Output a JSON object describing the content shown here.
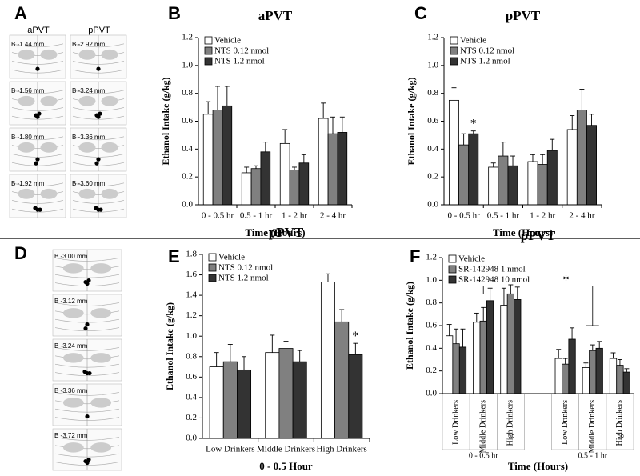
{
  "panels": [
    "A",
    "B",
    "C",
    "D",
    "E",
    "F"
  ],
  "atlas": {
    "a": {
      "columns": [
        "aPVT",
        "pPVT"
      ],
      "levels": [
        [
          "B -1.44 mm",
          "B -1.56 mm",
          "B -1.80 mm",
          "B -1.92 mm"
        ],
        [
          "B -2.92 mm",
          "B -3.24 mm",
          "B -3.36 mm",
          "B -3.60 mm"
        ]
      ]
    },
    "d": {
      "levels": [
        "B -3.00 mm",
        "B -3.12 mm",
        "B -3.24 mm",
        "B -3.36 mm",
        "B -3.72 mm"
      ]
    }
  },
  "chart_data": [
    {
      "type": "bar",
      "title": "aPVT",
      "x_label": "Time (Hours)",
      "y_label": "Ethanol Intake (g/kg)",
      "categories": [
        "0 - 0.5 hr",
        "0.5 - 1 hr",
        "1 - 2 hr",
        "2 - 4 hr"
      ],
      "ylim": [
        0,
        1.2
      ],
      "yticks": [
        {
          "value": 0,
          "label": "0.0"
        },
        0.2,
        0.4,
        0.6,
        0.8,
        {
          "value": 1,
          "label": "1.0"
        },
        1.2
      ],
      "series": [
        {
          "name": "Vehicle",
          "color": "#ffffff",
          "values": [
            0.65,
            0.23,
            0.44,
            0.62
          ],
          "errors": [
            0.09,
            0.04,
            0.1,
            0.11
          ]
        },
        {
          "name": "NTS 0.12 nmol",
          "color": "#808080",
          "values": [
            0.68,
            0.26,
            0.25,
            0.51
          ],
          "errors": [
            0.17,
            0.02,
            0.02,
            0.12
          ]
        },
        {
          "name": "NTS 1.2 nmol",
          "color": "#333333",
          "values": [
            0.71,
            0.38,
            0.3,
            0.52
          ],
          "errors": [
            0.14,
            0.07,
            0.06,
            0.11
          ]
        }
      ]
    },
    {
      "type": "bar",
      "title": "pPVT",
      "x_label": "Time (Hours)",
      "y_label": "Ethanol Intake (g/kg)",
      "categories": [
        "0 - 0.5 hr",
        "0.5 - 1 hr",
        "1 - 2 hr",
        "2 - 4 hr"
      ],
      "ylim": [
        0,
        1.2
      ],
      "yticks": [
        {
          "value": 0,
          "label": "0.0"
        },
        0.2,
        0.4,
        0.6,
        0.8,
        {
          "value": 1,
          "label": "1.0"
        },
        1.2
      ],
      "annotation": "*",
      "series": [
        {
          "name": "Vehicle",
          "color": "#ffffff",
          "values": [
            0.75,
            0.27,
            0.31,
            0.54
          ],
          "errors": [
            0.09,
            0.03,
            0.05,
            0.1
          ]
        },
        {
          "name": "NTS 0.12 nmol",
          "color": "#808080",
          "values": [
            0.43,
            0.35,
            0.29,
            0.68
          ],
          "errors": [
            0.08,
            0.1,
            0.07,
            0.15
          ]
        },
        {
          "name": "NTS 1.2 nmol",
          "color": "#333333",
          "values": [
            0.51,
            0.28,
            0.39,
            0.57
          ],
          "errors": [
            0.02,
            0.07,
            0.08,
            0.08
          ]
        }
      ]
    },
    {
      "type": "bar",
      "title": "pPVT",
      "x_label": "0 - 0.5 Hour",
      "y_label": "Ethanol Intake (g/kg)",
      "categories": [
        "Low Drinkers",
        "Middle Drinkers",
        "High Drinkers"
      ],
      "ylim": [
        0,
        1.8
      ],
      "yticks": [
        {
          "value": 0,
          "label": "0.0"
        },
        0.2,
        0.4,
        0.6,
        0.8,
        {
          "value": 1,
          "label": "1.0"
        },
        1.2,
        1.4,
        1.6,
        1.8
      ],
      "annotation": "*",
      "series": [
        {
          "name": "Vehicle",
          "color": "#ffffff",
          "values": [
            0.7,
            0.84,
            1.53
          ],
          "errors": [
            0.14,
            0.17,
            0.08
          ]
        },
        {
          "name": "NTS 0.12 nmol",
          "color": "#808080",
          "values": [
            0.75,
            0.88,
            1.14
          ],
          "errors": [
            0.17,
            0.07,
            0.12
          ]
        },
        {
          "name": "NTS 1.2 nmol",
          "color": "#333333",
          "values": [
            0.67,
            0.75,
            0.82
          ],
          "errors": [
            0.13,
            0.11,
            0.11
          ]
        }
      ]
    },
    {
      "type": "bar",
      "title": "pPVT",
      "x_label": "Time (Hours)",
      "y_label": "Ethanol Intake (g/kg)",
      "categories": [
        "Low Drinkers",
        "Middle Drinkers",
        "High Drinkers",
        "Low Drinkers",
        "Middle Drinkers",
        "High Drinkers"
      ],
      "group_labels": [
        "0 - 0.5 hr",
        "0.5 - 1 hr"
      ],
      "ylim": [
        0,
        1.2
      ],
      "yticks": [
        {
          "value": 0,
          "label": "0.0"
        },
        0.2,
        0.4,
        0.6,
        0.8,
        {
          "value": 1,
          "label": "1.0"
        },
        1.2
      ],
      "annotation": "*",
      "series": [
        {
          "name": "Vehicle",
          "color": "#ffffff",
          "values": [
            0.51,
            0.63,
            0.78,
            0.31,
            0.23,
            0.31
          ],
          "errors": [
            0.1,
            0.08,
            0.15,
            0.08,
            0.04,
            0.05
          ]
        },
        {
          "name": "SR-142948 1 nmol",
          "color": "#808080",
          "values": [
            0.44,
            0.64,
            0.88,
            0.26,
            0.38,
            0.25
          ],
          "errors": [
            0.13,
            0.12,
            0.08,
            0.05,
            0.05,
            0.05
          ]
        },
        {
          "name": "SR-142948 10 nmol",
          "color": "#333333",
          "values": [
            0.41,
            0.82,
            0.83,
            0.48,
            0.4,
            0.19
          ],
          "errors": [
            0.16,
            0.11,
            0.11,
            0.1,
            0.06,
            0.03
          ]
        }
      ]
    }
  ]
}
